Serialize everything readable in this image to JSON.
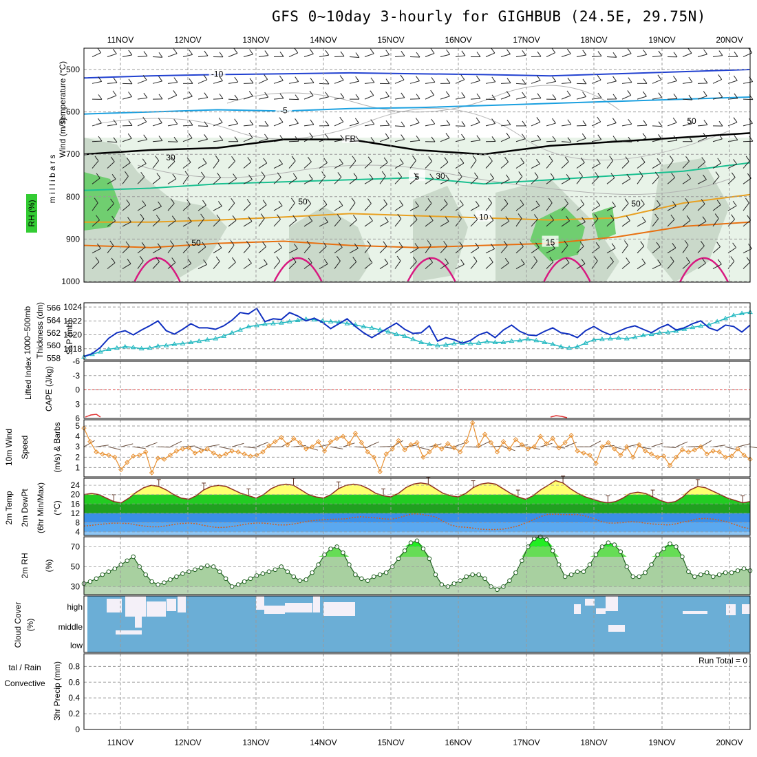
{
  "title": "GFS 0~10day 3-hourly for GIGHBUB (24.5E, 29.75N)",
  "days": [
    "11NOV",
    "12NOV",
    "13NOV",
    "14NOV",
    "15NOV",
    "16NOV",
    "17NOV",
    "18NOV",
    "19NOV",
    "20NOV"
  ],
  "chart_data": [
    {
      "panel": "upper-air cross-section",
      "type": "heatmap",
      "ylabel": "m i l l i b a r s",
      "yticks": [
        "500",
        "600",
        "700",
        "800",
        "900",
        "1000"
      ],
      "legend": {
        "wind": "Wind (m/s)",
        "temperature": "Temperature (°C)",
        "rh": "RH (%)"
      },
      "temperature_contours": [
        {
          "label": "-10",
          "color": "#2040d0",
          "values_hpa": [
            520,
            515,
            512,
            510,
            508,
            510,
            512,
            515,
            510,
            505,
            500
          ]
        },
        {
          "label": "-5",
          "color": "#1aa0e0",
          "values_hpa": [
            605,
            600,
            595,
            598,
            592,
            590,
            585,
            580,
            575,
            570,
            565
          ]
        },
        {
          "label": "FR",
          "color": "#000000",
          "values_hpa": [
            700,
            690,
            685,
            665,
            665,
            690,
            700,
            680,
            670,
            660,
            650
          ]
        },
        {
          "label": "5",
          "color": "#1ac090",
          "values_hpa": [
            785,
            780,
            770,
            765,
            760,
            755,
            770,
            760,
            750,
            740,
            720
          ]
        },
        {
          "label": "10",
          "color": "#e8a020",
          "values_hpa": [
            860,
            860,
            855,
            848,
            840,
            845,
            850,
            855,
            850,
            815,
            795
          ]
        },
        {
          "label": "15",
          "color": "#e87010",
          "values_hpa": [
            915,
            920,
            910,
            905,
            915,
            920,
            915,
            910,
            895,
            870,
            860
          ]
        }
      ],
      "rh_contour_labels": [
        "30",
        "50",
        "50",
        "30",
        "50",
        "50"
      ]
    },
    {
      "panel": "slp-thickness",
      "type": "line",
      "ylabel_left": "1000~500mb Thickness (dm)",
      "ylabel_right": "SLP (mb)",
      "yticks_thickness": [
        "566",
        "564",
        "562",
        "560",
        "558"
      ],
      "yticks_slp": [
        "1024",
        "1022",
        "1020",
        "1018"
      ],
      "series": [
        {
          "name": "SLP",
          "unit": "mb",
          "color": "#1030c0",
          "values": [
            1016.9,
            1017.3,
            1018.2,
            1019.5,
            1020.3,
            1020.6,
            1020.0,
            1020.7,
            1021.3,
            1022.0,
            1020.6,
            1020.1,
            1020.8,
            1021.6,
            1021.0,
            1021.0,
            1020.8,
            1021.3,
            1022.1,
            1023.2,
            1023.0,
            1023.8,
            1021.9,
            1022.3,
            1022.2,
            1023.2,
            1022.7,
            1022.0,
            1022.4,
            1021.8,
            1020.9,
            1021.6,
            1022.3,
            1021.2,
            1020.3,
            1019.6,
            1020.3,
            1021.0,
            1021.7,
            1020.8,
            1020.2,
            1020.3,
            1021.3,
            1019.1,
            1019.6,
            1019.3,
            1018.8,
            1019.2,
            1020.0,
            1020.4,
            1019.6,
            1020.7,
            1021.4,
            1020.5,
            1020.0,
            1019.9,
            1020.5,
            1021.0,
            1020.3,
            1020.1,
            1019.6,
            1020.6,
            1021.2,
            1020.5,
            1020.0,
            1020.5,
            1021.0,
            1021.3,
            1020.8,
            1020.3,
            1021.0,
            1021.5,
            1020.7,
            1021.0,
            1021.6,
            1022.0,
            1021.0,
            1020.6,
            1021.4,
            1021.2,
            1020.4,
            1021.4
          ]
        },
        {
          "name": "Thickness",
          "unit": "dm",
          "color": "#20b8c0",
          "values": [
            558.2,
            558.6,
            559.0,
            559.4,
            559.6,
            559.8,
            559.7,
            559.5,
            559.6,
            559.9,
            560.0,
            560.2,
            560.3,
            560.5,
            560.7,
            560.9,
            561.1,
            561.5,
            562.0,
            562.5,
            563.0,
            563.2,
            563.4,
            563.5,
            563.6,
            563.8,
            564.0,
            564.2,
            564.1,
            563.9,
            563.8,
            563.7,
            563.5,
            563.3,
            563.0,
            562.8,
            562.5,
            562.2,
            561.8,
            561.5,
            561.0,
            560.5,
            560.2,
            560.0,
            560.1,
            560.3,
            560.4,
            560.3,
            560.4,
            560.6,
            560.5,
            560.5,
            560.7,
            560.8,
            561.0,
            560.8,
            560.5,
            560.2,
            559.8,
            559.6,
            559.8,
            560.4,
            560.9,
            561.0,
            561.1,
            561.2,
            561.1,
            561.3,
            561.6,
            561.8,
            562.0,
            562.1,
            562.3,
            562.6,
            562.9,
            563.1,
            563.3,
            563.8,
            564.3,
            564.8,
            565.1,
            565.3
          ]
        }
      ]
    },
    {
      "panel": "cape-li",
      "type": "line",
      "ylabel_left": "Lifted Index",
      "ylabel_right": "CAPE (J/kg)",
      "yticks": [
        "-6",
        "-3",
        "0",
        "3",
        "6"
      ]
    },
    {
      "panel": "wind10",
      "type": "line",
      "ylabel": "10m Wind Speed (m/s) & Barbs",
      "yticks": [
        "5",
        "4",
        "3",
        "2",
        "1"
      ],
      "series": [
        {
          "name": "Wind Speed",
          "unit": "m/s",
          "color": "#e89030",
          "values": [
            4.8,
            3.5,
            2.5,
            2.3,
            2.2,
            2.0,
            0.8,
            1.5,
            2.1,
            2.2,
            2.5,
            0.5,
            1.9,
            1.8,
            2.2,
            2.6,
            2.8,
            2.9,
            2.4,
            2.6,
            2.8,
            2.4,
            2.1,
            2.3,
            2.6,
            2.5,
            2.3,
            2.1,
            2.2,
            2.5,
            3.1,
            3.5,
            3.9,
            3.2,
            3.8,
            3.4,
            2.8,
            3.0,
            3.5,
            2.6,
            3.5,
            3.8,
            4.0,
            3.3,
            4.3,
            3.4,
            2.5,
            2.0,
            0.6,
            2.3,
            2.8,
            3.6,
            2.7,
            3.2,
            3.4,
            2.0,
            2.5,
            3.1,
            2.8,
            3.3,
            2.9,
            2.5,
            3.5,
            5.3,
            3.1,
            4.2,
            3.4,
            2.5,
            3.5,
            2.8,
            3.7,
            3.2,
            2.8,
            3.0,
            4.0,
            3.3,
            3.8,
            2.9,
            3.4,
            4.1,
            2.6,
            2.4,
            2.2,
            1.4,
            3.0,
            3.4,
            2.8,
            2.2,
            3.0,
            2.0,
            3.2,
            2.6,
            2.3,
            2.0,
            2.1,
            1.2,
            2.0,
            2.7,
            2.5,
            2.7,
            3.0,
            2.3,
            2.6,
            2.5,
            2.0,
            2.1,
            2.8,
            2.2,
            1.8
          ]
        }
      ]
    },
    {
      "panel": "temp2m",
      "type": "area",
      "ylabel": "2m Temp 2m DewPt (6hr Min/Max) (°C)",
      "yticks": [
        "24",
        "20",
        "16",
        "12",
        "8",
        "4"
      ],
      "series": [
        {
          "name": "2m Temp",
          "unit": "°C",
          "color": "#903020",
          "values": [
            20.0,
            20.5,
            20.0,
            18.5,
            17.0,
            16.5,
            18.5,
            21.0,
            23.0,
            24.0,
            23.5,
            22.0,
            20.0,
            18.5,
            18.0,
            19.5,
            22.0,
            23.5,
            24.0,
            23.5,
            22.0,
            20.5,
            19.5,
            18.5,
            20.0,
            22.5,
            24.0,
            24.5,
            24.0,
            22.0,
            20.0,
            19.0,
            18.5,
            20.0,
            22.5,
            24.0,
            24.5,
            24.0,
            22.5,
            20.5,
            19.5,
            19.0,
            20.5,
            23.0,
            24.5,
            25.0,
            24.5,
            22.5,
            20.5,
            19.5,
            19.0,
            20.5,
            23.0,
            24.5,
            25.0,
            24.5,
            22.5,
            20.5,
            19.0,
            18.0,
            19.5,
            22.0,
            24.0,
            26.0,
            25.0,
            22.5,
            20.5,
            19.0,
            18.0,
            17.0,
            16.5,
            17.0,
            18.5,
            20.5,
            21.0,
            20.5,
            19.0,
            17.5,
            16.5,
            17.0,
            19.0,
            22.0,
            23.5,
            23.0,
            21.5,
            20.0,
            18.5,
            17.5,
            16.5,
            17.0
          ]
        },
        {
          "name": "2m DewPt",
          "unit": "°C",
          "color": "#d06020",
          "values": [
            6.5,
            6.8,
            7.2,
            7.5,
            7.8,
            7.7,
            7.6,
            7.0,
            6.5,
            6.2,
            6.2,
            6.6,
            7.2,
            7.6,
            7.8,
            7.5,
            6.8,
            6.2,
            5.9,
            6.0,
            6.4,
            7.0,
            7.5,
            7.8,
            7.8,
            7.4,
            7.0,
            7.0,
            7.4,
            8.0,
            8.6,
            9.0,
            9.2,
            9.4,
            9.5,
            9.6,
            10.2,
            10.5,
            10.3,
            10.0,
            9.6,
            9.4,
            10.0,
            11.0,
            11.8,
            11.6,
            11.0,
            10.4,
            8.5,
            7.0,
            6.2,
            6.0,
            5.6,
            5.2,
            5.0,
            5.0,
            5.2,
            5.8,
            6.6,
            7.8,
            9.2,
            10.6,
            11.5,
            11.6,
            11.4,
            11.4,
            11.4,
            10.8,
            9.8,
            8.6,
            7.8,
            7.8,
            8.0,
            8.4,
            8.2,
            7.8,
            7.4,
            7.2,
            7.0,
            7.4,
            8.2,
            8.8,
            9.6,
            9.8,
            9.5,
            9.0,
            8.2,
            7.2,
            6.0,
            5.4
          ]
        }
      ]
    },
    {
      "panel": "rh2m",
      "type": "area",
      "ylabel": "2m RH (%)",
      "yticks": [
        "70",
        "50",
        "30"
      ],
      "series": [
        {
          "name": "2m RH",
          "unit": "%",
          "values": [
            33,
            35,
            38,
            42,
            45,
            48,
            52,
            56,
            60,
            50,
            42,
            35,
            32,
            34,
            37,
            40,
            43,
            45,
            47,
            49,
            51,
            50,
            45,
            38,
            30,
            32,
            35,
            38,
            41,
            43,
            45,
            47,
            50,
            45,
            40,
            36,
            37,
            44,
            52,
            62,
            68,
            70,
            64,
            52,
            42,
            38,
            36,
            40,
            42,
            44,
            50,
            58,
            66,
            74,
            76,
            68,
            58,
            42,
            32,
            30,
            33,
            36,
            40,
            42,
            42,
            38,
            30,
            27,
            30,
            36,
            44,
            56,
            70,
            78,
            80,
            77,
            66,
            52,
            40,
            42,
            45,
            45,
            52,
            62,
            70,
            74,
            72,
            65,
            50,
            40,
            40,
            44,
            52,
            62,
            68,
            73,
            70,
            60,
            45,
            40,
            42,
            44,
            40,
            42,
            44,
            44,
            46,
            48,
            46
          ]
        }
      ]
    },
    {
      "panel": "cloud",
      "type": "heatmap",
      "ylabel": "Cloud Cover (%)",
      "levels": [
        "high",
        "middle",
        "low"
      ],
      "yticks": [
        "high",
        "middle",
        "low"
      ]
    },
    {
      "panel": "precip",
      "type": "bar",
      "ylabel": "3hr Precip (mm)",
      "ylabel_side": "Total / Rain Convective",
      "yticks": [
        "0.8",
        "0.6",
        "0.4",
        "0.2",
        "0"
      ],
      "annotation": "Run Total = 0",
      "values": []
    }
  ],
  "labels": {
    "p1_wind": "Wind (m/s)",
    "p1_temp": "Temperature (°C)",
    "p1_rh": "RH (%)",
    "p1_mb": "m i l l i b a r s",
    "p2_thk": "1000~500mb",
    "p2_thk2": "Thickness (dm)",
    "p2_slp": "SLP (mb)",
    "p3_li": "Lifted Index",
    "p3_cape": "CAPE (J/kg)",
    "p4_a": "10m Wind",
    "p4_b": "Speed",
    "p4_c": "(m/s) & Barbs",
    "p5_a": "2m Temp",
    "p5_b": "2m DewPt",
    "p5_c": "(6hr Min/Max)",
    "p5_d": "(°C)",
    "p6_a": "2m RH",
    "p6_b": "(%)",
    "p7_a": "Cloud Cover",
    "p7_b": "(%)",
    "p8_a": "tal / Rain",
    "p8_b": "Convective",
    "p8_c": "3hr Precip (mm)",
    "run_total": "Run Total = 0"
  },
  "colors": {
    "slp": "#1030c0",
    "thickness": "#20b8c0",
    "wind_speed": "#e89030",
    "temp_band_yellow": "#ffff80",
    "temp_band_green": "#22cc22",
    "dew_band_blue": "#3399ee",
    "rh_green": "#22dd22",
    "cloud_blue": "#6baed6",
    "cloud_clear": "#f4f0f8"
  }
}
